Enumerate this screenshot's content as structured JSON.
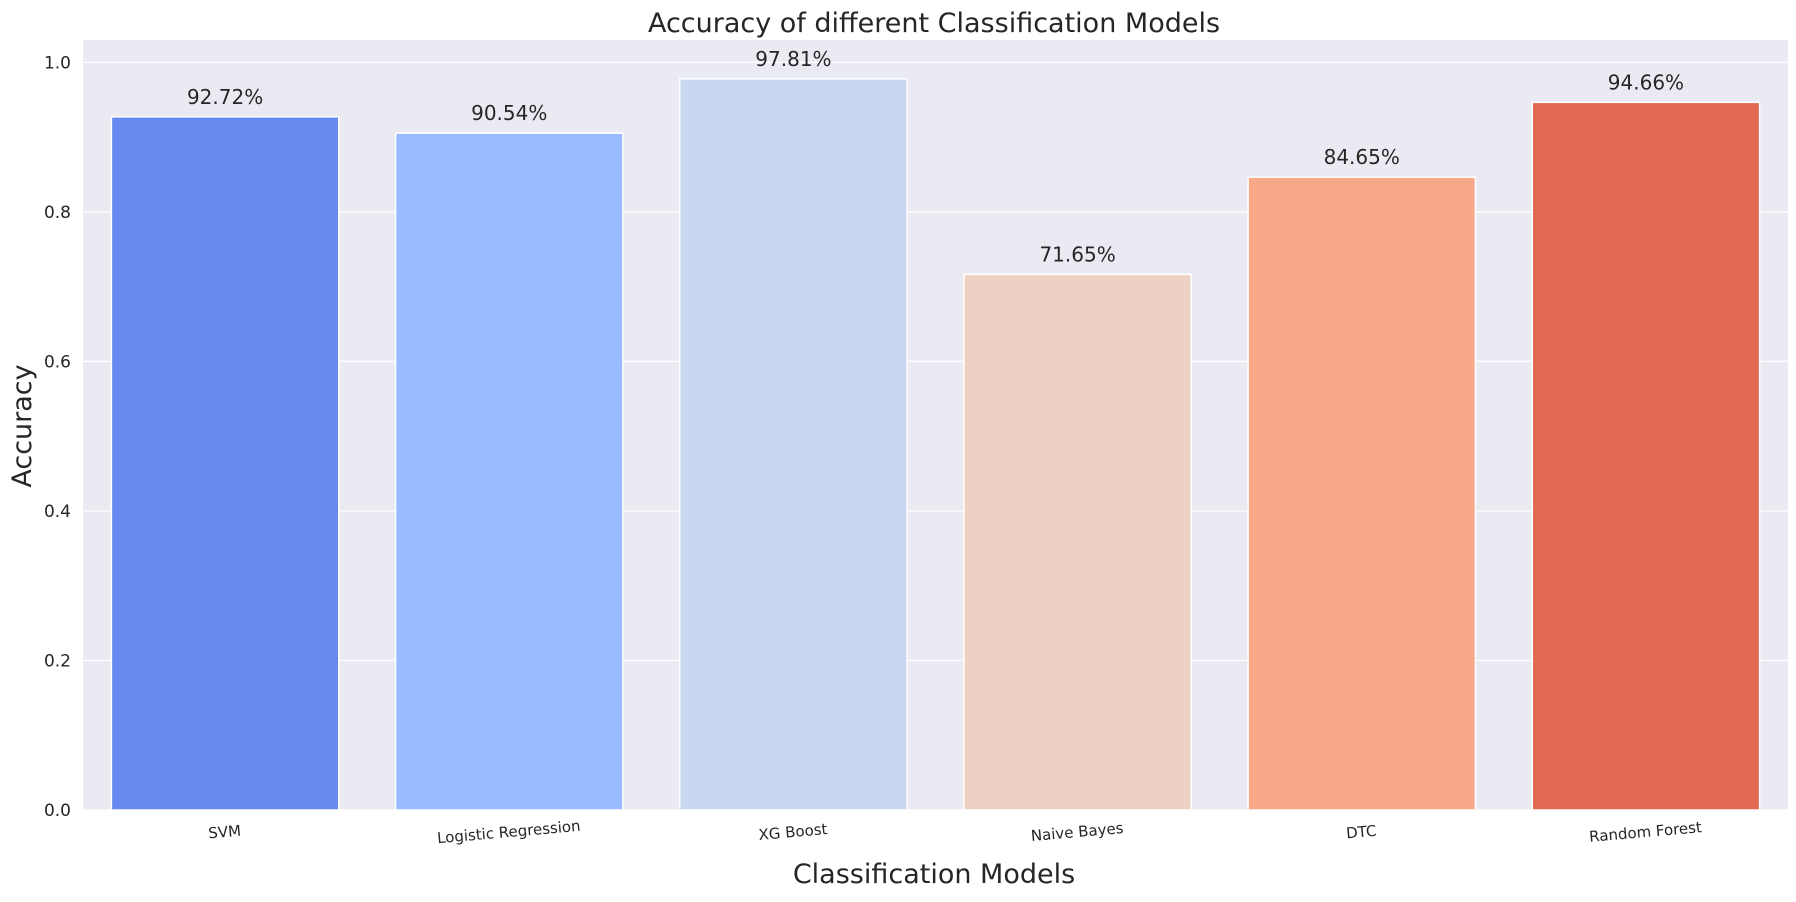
{
  "chart_data": {
    "type": "bar",
    "title": "Accuracy of different Classification Models",
    "xlabel": "Classification Models",
    "ylabel": "Accuracy",
    "categories": [
      "SVM",
      "Logistic Regression",
      "XG Boost",
      "Naive Bayes",
      "DTC",
      "Random Forest"
    ],
    "values": [
      0.9272,
      0.9054,
      0.9781,
      0.7165,
      0.8465,
      0.9466
    ],
    "data_labels": [
      "92.72%",
      "90.54%",
      "97.81%",
      "71.65%",
      "84.65%",
      "94.66%"
    ],
    "colors": [
      "#6788ee",
      "#9abbff",
      "#c9d7f0",
      "#edd1c2",
      "#f7a889",
      "#e26952"
    ],
    "ylim": [
      0,
      1.03
    ],
    "yticks": [
      0.0,
      0.2,
      0.4,
      0.6,
      0.8,
      1.0
    ],
    "ytick_labels": [
      "0.0",
      "0.2",
      "0.4",
      "0.6",
      "0.8",
      "1.0"
    ],
    "grid": true,
    "plot_background": "#eaeaf2",
    "gridline_color": "#ffffff"
  }
}
